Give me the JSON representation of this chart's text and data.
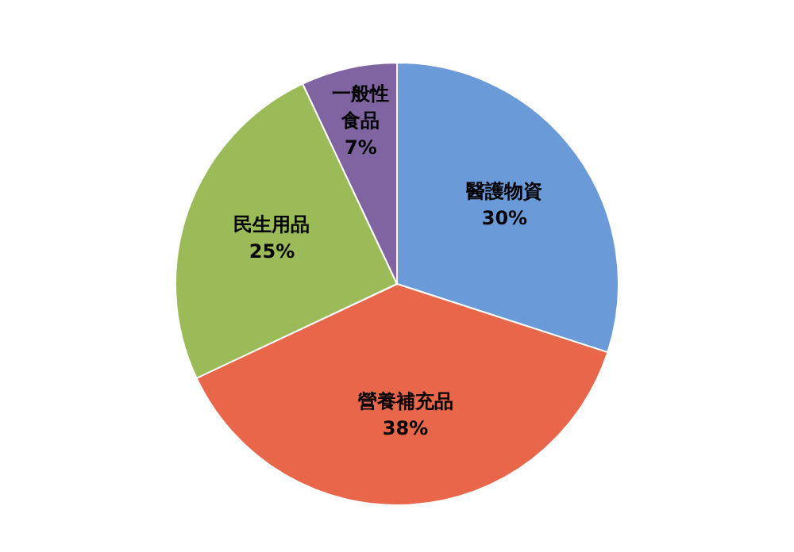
{
  "chart_data": {
    "type": "pie",
    "categories": [
      "醫護物資",
      "營養補充品",
      "民生用品",
      "一般性食品"
    ],
    "values": [
      30,
      38,
      25,
      7
    ],
    "colors": [
      "#6a9ad8",
      "#e8674a",
      "#9bbb59",
      "#8064a2"
    ],
    "value_labels": [
      "30%",
      "38%",
      "25%",
      "7%"
    ],
    "legend": false
  }
}
